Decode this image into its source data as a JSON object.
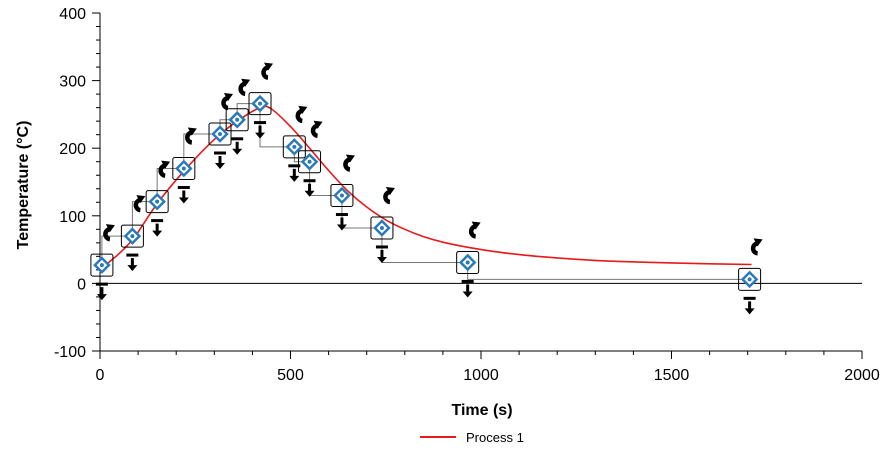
{
  "chart_data": {
    "type": "line",
    "title": "",
    "xlabel": "Time (s)",
    "ylabel": "Temperature (°C)",
    "xlim": [
      0,
      2000
    ],
    "ylim": [
      -100,
      400
    ],
    "x_ticks": [
      0,
      500,
      1000,
      1500,
      2000
    ],
    "y_ticks": [
      -100,
      0,
      100,
      200,
      300,
      400
    ],
    "x_tick_labels": [
      "0",
      "500",
      "1000",
      "1500",
      "2000"
    ],
    "y_tick_labels": [
      "-100",
      "0",
      "100",
      "200",
      "300",
      "400"
    ],
    "grid": false,
    "legend_position": "bottom-center",
    "series": [
      {
        "name": "Process 1",
        "color": "#e8191a",
        "x": [
          0,
          25,
          50,
          90,
          150,
          220,
          300,
          360,
          420,
          450,
          500,
          550,
          600,
          650,
          700,
          750,
          800,
          850,
          900,
          960,
          1050,
          1150,
          1300,
          1450,
          1600,
          1710
        ],
        "y": [
          18,
          32,
          44,
          68,
          118,
          166,
          213,
          240,
          260,
          258,
          232,
          200,
          167,
          137,
          113,
          94,
          80,
          69,
          61,
          54,
          46,
          40,
          34,
          31,
          29,
          28
        ]
      }
    ],
    "control_points": {
      "x": [
        5,
        85,
        150,
        220,
        315,
        360,
        420,
        510,
        550,
        635,
        740,
        965,
        1705
      ],
      "y": [
        27,
        70,
        121,
        170,
        221,
        242,
        266,
        202,
        180,
        130,
        82,
        31,
        6
      ]
    },
    "hline_at": 0
  }
}
